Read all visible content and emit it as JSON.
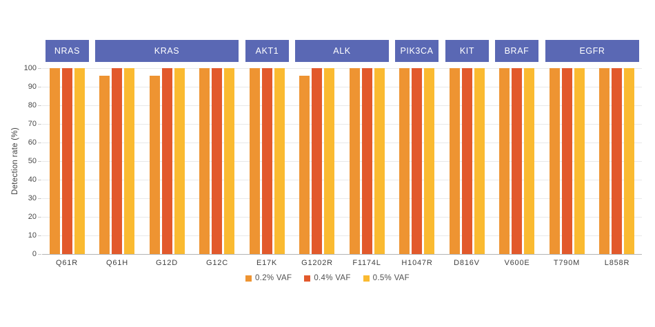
{
  "chart_data": {
    "type": "bar",
    "title": "",
    "ylabel": "Detection rate (%)",
    "xlabel": "",
    "ylim": [
      0,
      100
    ],
    "yticks": [
      0,
      10,
      20,
      30,
      40,
      50,
      60,
      70,
      80,
      90,
      100
    ],
    "grid": true,
    "legend_position": "bottom",
    "categories": [
      "Q61R",
      "Q61H",
      "G12D",
      "G12C",
      "E17K",
      "G1202R",
      "F1174L",
      "H1047R",
      "D816V",
      "V600E",
      "T790M",
      "L858R"
    ],
    "gene_groups": [
      {
        "label": "NRAS",
        "start": 0,
        "span": 1
      },
      {
        "label": "KRAS",
        "start": 1,
        "span": 3
      },
      {
        "label": "AKT1",
        "start": 4,
        "span": 1
      },
      {
        "label": "ALK",
        "start": 5,
        "span": 2
      },
      {
        "label": "PIK3CA",
        "start": 7,
        "span": 1
      },
      {
        "label": "KIT",
        "start": 8,
        "span": 1
      },
      {
        "label": "BRAF",
        "start": 9,
        "span": 1
      },
      {
        "label": "EGFR",
        "start": 10,
        "span": 2
      }
    ],
    "series": [
      {
        "name": "0.2% VAF",
        "color": "#EE9432",
        "values": [
          100,
          96,
          96,
          100,
          100,
          96,
          100,
          100,
          100,
          100,
          100,
          100
        ]
      },
      {
        "name": "0.4% VAF",
        "color": "#E2592C",
        "values": [
          100,
          100,
          100,
          100,
          100,
          100,
          100,
          100,
          100,
          100,
          100,
          100
        ]
      },
      {
        "name": "0.5% VAF",
        "color": "#FABA31",
        "values": [
          100,
          100,
          100,
          100,
          100,
          100,
          100,
          100,
          100,
          100,
          100,
          100
        ]
      }
    ],
    "colors": {
      "gene_header_bg": "#5A68B4",
      "gene_header_text": "#ffffff",
      "gridline": "#e8e8e8",
      "axis_line": "#b3b3b3",
      "axis_text": "#3f3f3f"
    }
  }
}
